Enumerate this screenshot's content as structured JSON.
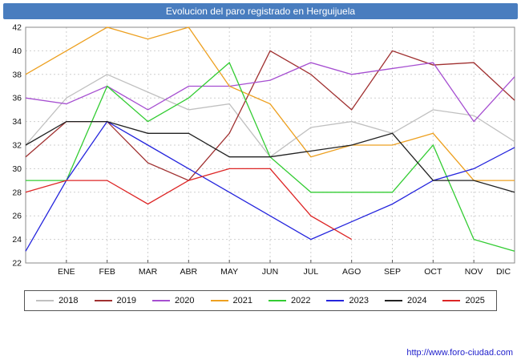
{
  "title": "Evolucion del paro registrado en Herguijuela",
  "footer": {
    "url": "http://www.foro-ciudad.com"
  },
  "colors": {
    "title_bg": "#497dbf",
    "link": "#2222cc"
  },
  "chart_data": {
    "type": "line",
    "title": "Evolucion del paro registrado en Herguijuela",
    "categories": [
      "",
      "ENE",
      "FEB",
      "MAR",
      "ABR",
      "MAY",
      "JUN",
      "JUL",
      "AGO",
      "SEP",
      "OCT",
      "NOV",
      "DIC"
    ],
    "ylim": [
      22,
      42
    ],
    "ytick_step": 2,
    "grid": true,
    "legend_position": "bottom",
    "series": [
      {
        "name": "2018",
        "color": "#c0c0c0",
        "values": [
          32,
          36,
          38,
          36.5,
          35,
          35.5,
          31,
          33.5,
          34,
          33,
          35,
          34.5,
          32.3
        ]
      },
      {
        "name": "2019",
        "color": "#a03030",
        "values": [
          31,
          34,
          34,
          30.5,
          29,
          33,
          40,
          38,
          35,
          40,
          38.8,
          39,
          35.8
        ]
      },
      {
        "name": "2020",
        "color": "#a64fd1",
        "values": [
          36,
          35.5,
          37,
          35,
          37,
          37,
          37.5,
          39,
          38,
          38.5,
          39,
          34,
          37.8
        ]
      },
      {
        "name": "2021",
        "color": "#eda020",
        "values": [
          38,
          40,
          42,
          41,
          42,
          37,
          35.5,
          31,
          32,
          32,
          33,
          29,
          29
        ]
      },
      {
        "name": "2022",
        "color": "#33cc33",
        "values": [
          29,
          29,
          37,
          34,
          36,
          39,
          31,
          28,
          28,
          28,
          32,
          24,
          23
        ]
      },
      {
        "name": "2023",
        "color": "#2525dd",
        "values": [
          23,
          29,
          34,
          32,
          30,
          28,
          26,
          24,
          25.5,
          27,
          29,
          30,
          31.8
        ]
      },
      {
        "name": "2024",
        "color": "#222222",
        "values": [
          32,
          34,
          34,
          33,
          33,
          31,
          31,
          31.5,
          32,
          33,
          29,
          29,
          28
        ]
      },
      {
        "name": "2025",
        "color": "#dd2525",
        "values": [
          28,
          29,
          29,
          27,
          29,
          30,
          30,
          26,
          24,
          null,
          null,
          null,
          null
        ]
      }
    ]
  }
}
